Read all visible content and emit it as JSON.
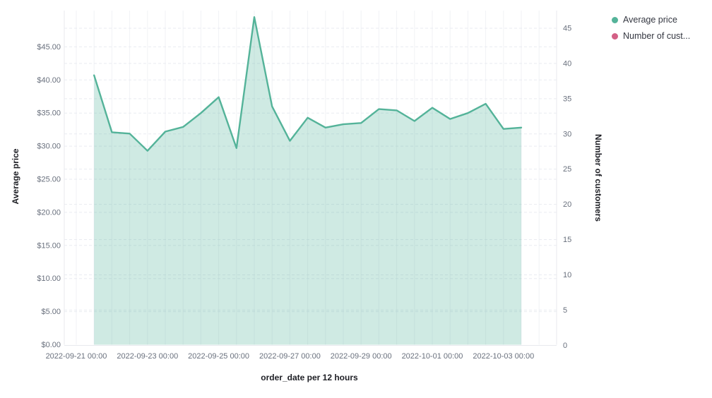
{
  "legend": {
    "position": "top-right",
    "items": [
      {
        "label": "Average price",
        "color": "#54b399",
        "icon": "dot"
      },
      {
        "label": "Number of cust...",
        "color": "#d36086",
        "icon": "dot"
      }
    ]
  },
  "chart_data": {
    "type": "area",
    "title": "",
    "x_label": "order_date per 12 hours",
    "grid": true,
    "legend_position": "top-right",
    "y_left": {
      "label": "Average price",
      "ticks": [
        "$0.00",
        "$5.00",
        "$10.00",
        "$15.00",
        "$20.00",
        "$25.00",
        "$30.00",
        "$35.00",
        "$40.00",
        "$45.00"
      ],
      "range": [
        0,
        50.5
      ]
    },
    "y_right": {
      "label": "Number of customers",
      "ticks": [
        "0",
        "5",
        "10",
        "15",
        "20",
        "25",
        "30",
        "35",
        "40",
        "45"
      ],
      "range": [
        0,
        47.5
      ]
    },
    "x_ticks": [
      "2022-09-21 00:00",
      "2022-09-23 00:00",
      "2022-09-25 00:00",
      "2022-09-27 00:00",
      "2022-09-29 00:00",
      "2022-10-01 00:00",
      "2022-10-03 00:00"
    ],
    "x_interval": "12 hours",
    "series": [
      {
        "name": "Average price",
        "axis": "left",
        "color": "#54b399",
        "fill": "rgba(84,179,153,0.28)",
        "x": [
          "2022-09-21 12:00",
          "2022-09-22 00:00",
          "2022-09-22 12:00",
          "2022-09-23 00:00",
          "2022-09-23 12:00",
          "2022-09-24 00:00",
          "2022-09-24 12:00",
          "2022-09-25 00:00",
          "2022-09-25 12:00",
          "2022-09-26 00:00",
          "2022-09-26 12:00",
          "2022-09-27 00:00",
          "2022-09-27 12:00",
          "2022-09-28 00:00",
          "2022-09-28 12:00",
          "2022-09-29 00:00",
          "2022-09-29 12:00",
          "2022-09-30 00:00",
          "2022-09-30 12:00",
          "2022-10-01 00:00",
          "2022-10-01 12:00",
          "2022-10-02 00:00",
          "2022-10-02 12:00",
          "2022-10-03 00:00",
          "2022-10-03 12:00"
        ],
        "values": [
          40.7,
          32.1,
          31.9,
          29.3,
          32.2,
          32.9,
          35.0,
          37.4,
          29.7,
          49.5,
          36.0,
          30.8,
          34.3,
          32.8,
          33.3,
          33.5,
          35.6,
          35.4,
          33.8,
          35.8,
          34.1,
          35.0,
          36.4,
          32.6,
          32.8
        ]
      },
      {
        "name": "Number of customers",
        "axis": "right",
        "color": "#d36086",
        "visible": false,
        "x": [],
        "values": []
      }
    ]
  },
  "colors": {
    "background": "#ffffff",
    "grid_vertical": "#f1f2f6",
    "grid_horizontal": "#e9ebf1",
    "axis_line": "#e8eaee",
    "tick_label": "#69707d",
    "axis_title": "#1d1e24"
  }
}
